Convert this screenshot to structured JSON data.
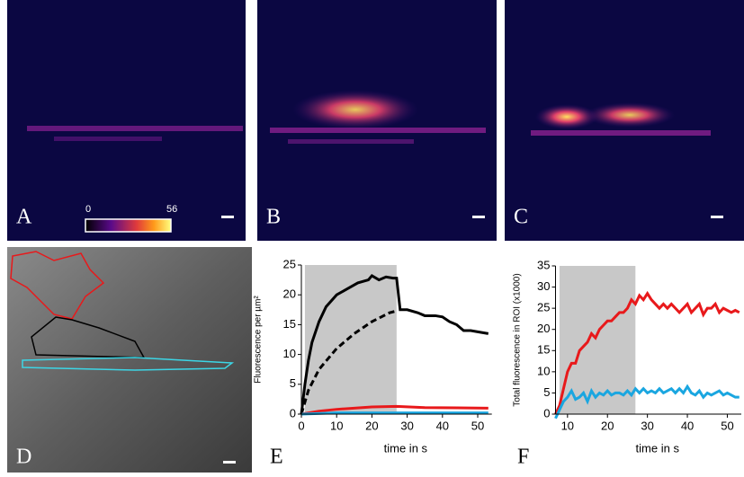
{
  "panels": {
    "a": "A",
    "b": "B",
    "c": "C",
    "d": "D"
  },
  "colorbar": {
    "min": 0,
    "max": 56
  },
  "chart_data": [
    {
      "type": "line",
      "panel_label": "E",
      "x_label": "time in s",
      "y_label": "Fluorescence per µm²",
      "xlim": [
        0,
        54
      ],
      "ylim": [
        0,
        25
      ],
      "xticks": [
        0,
        10,
        20,
        30,
        40,
        50
      ],
      "yticks": [
        0,
        5,
        10,
        15,
        20,
        25
      ],
      "shaded_region": [
        1,
        27
      ],
      "series": [
        {
          "color": "#000000",
          "dash": false,
          "x": [
            0,
            1,
            2,
            3,
            5,
            7,
            10,
            13,
            16,
            19,
            20,
            22,
            24,
            26,
            27,
            28,
            30,
            33,
            35,
            38,
            40,
            42,
            44,
            46,
            48,
            50,
            53
          ],
          "values": [
            0,
            5,
            9,
            12,
            15.5,
            18,
            20,
            21,
            22,
            22.5,
            23.2,
            22.5,
            23,
            22.8,
            22.8,
            17.5,
            17.5,
            17,
            16.5,
            16.5,
            16.3,
            15.5,
            15,
            14,
            14,
            13.8,
            13.5
          ]
        },
        {
          "color": "#000000",
          "dash": true,
          "x": [
            0,
            2,
            5,
            10,
            15,
            20,
            25,
            27
          ],
          "values": [
            0,
            4,
            7.5,
            11,
            13.5,
            15.5,
            17,
            17.3
          ]
        },
        {
          "color": "#e8191b",
          "dash": false,
          "x": [
            0,
            5,
            10,
            20,
            27,
            35,
            53
          ],
          "values": [
            0,
            0.5,
            0.8,
            1.2,
            1.3,
            1.1,
            1
          ]
        },
        {
          "color": "#1aa6e0",
          "dash": false,
          "x": [
            0,
            10,
            53
          ],
          "values": [
            0,
            0.2,
            0.2
          ]
        }
      ]
    },
    {
      "type": "line",
      "panel_label": "F",
      "x_label": "time in s",
      "y_label": "Total fluorescence in ROI (x1000)",
      "xlim": [
        7,
        53.5
      ],
      "ylim": [
        0,
        35
      ],
      "xticks": [
        10,
        20,
        30,
        40,
        50
      ],
      "yticks": [
        0,
        5,
        10,
        15,
        20,
        25,
        30,
        35
      ],
      "shaded_region": [
        8,
        27
      ],
      "x": [
        7,
        8,
        9,
        10,
        11,
        12,
        13,
        14,
        15,
        16,
        17,
        18,
        19,
        20,
        21,
        22,
        23,
        24,
        25,
        26,
        27,
        28,
        29,
        30,
        31,
        32,
        33,
        34,
        35,
        36,
        37,
        38,
        39,
        40,
        41,
        42,
        43,
        44,
        45,
        46,
        47,
        48,
        49,
        50,
        51,
        52,
        53
      ],
      "series": [
        {
          "color": "#e8191b",
          "dash": false,
          "values": [
            0,
            2,
            6,
            10,
            12,
            12,
            15,
            16,
            17,
            19,
            18,
            20,
            21,
            22,
            22,
            23,
            24,
            24,
            25,
            27,
            26,
            28,
            27,
            28.5,
            27,
            26,
            25,
            26,
            25,
            26,
            25,
            24,
            25,
            26,
            24,
            25,
            26,
            23.5,
            25,
            25,
            26,
            24,
            25,
            24.5,
            24,
            24.5,
            24
          ]
        },
        {
          "color": "#1aa6e0",
          "dash": false,
          "values": [
            -1,
            1,
            3,
            4,
            5.5,
            3.5,
            4,
            5,
            3,
            5.5,
            4,
            5,
            4.5,
            5.5,
            4.5,
            5,
            5,
            4.5,
            5.5,
            4.5,
            6,
            5,
            6,
            5,
            5.5,
            5,
            6,
            5,
            5.5,
            6,
            5,
            6,
            5,
            6.5,
            5,
            4.5,
            5.5,
            4,
            5,
            4.5,
            5,
            5.5,
            4.5,
            5,
            4.5,
            4,
            4
          ]
        }
      ]
    }
  ]
}
